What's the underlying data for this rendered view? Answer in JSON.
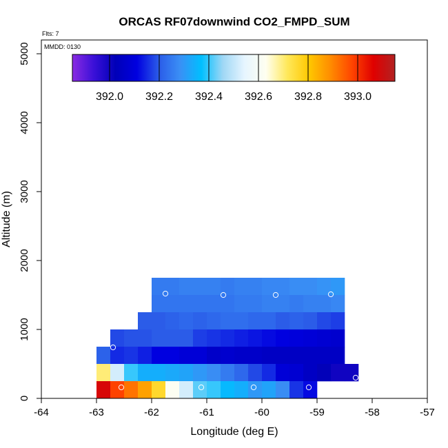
{
  "chart_data": {
    "type": "heatmap",
    "title": "ORCAS RF07downwind CO2_FMPD_SUM",
    "xlabel": "Longitude (deg E)",
    "ylabel": "Altitude (m)",
    "flights_label": "Flts: 7",
    "date_label": "MMDD: 0130",
    "xlim": [
      -64,
      -57
    ],
    "ylim": [
      0,
      5200
    ],
    "x_ticks": [
      -64,
      -63,
      -62,
      -61,
      -60,
      -59,
      -58,
      -57
    ],
    "x_tick_labels": [
      "-64",
      "-63",
      "-62",
      "-61",
      "-60",
      "-59",
      "-58",
      "-57"
    ],
    "y_ticks": [
      0,
      1000,
      2000,
      3000,
      4000,
      5000
    ],
    "y_tick_labels": [
      "0",
      "1000",
      "2000",
      "3000",
      "4000",
      "5000"
    ],
    "colorbar": {
      "min": 391.85,
      "max": 393.15,
      "ticks": [
        392.0,
        392.2,
        392.4,
        392.6,
        392.8,
        393.0
      ],
      "tick_labels": [
        "392.0",
        "392.2",
        "392.4",
        "392.6",
        "392.8",
        "393.0"
      ],
      "colors": [
        "#8a2be2",
        "#3a10d8",
        "#0000b8",
        "#0000e0",
        "#2a5ae8",
        "#3a8ff5",
        "#00bfff",
        "#9fd7f5",
        "#e6f5ff",
        "#fffff0",
        "#ffe85a",
        "#ffc800",
        "#ff8c00",
        "#ff4500",
        "#e00000",
        "#b22222"
      ]
    },
    "x_bin_width": 0.25,
    "y_bin_height": 250,
    "cells": [
      {
        "x0": -62.0,
        "x1": -58.5,
        "y": 1625,
        "values": [
          392.25,
          392.25,
          392.26,
          392.26,
          392.26,
          392.25,
          392.26,
          392.26,
          392.27,
          392.27,
          392.28,
          392.28,
          392.29,
          392.3
        ]
      },
      {
        "x0": -62.0,
        "x1": -58.5,
        "y": 1375,
        "values": [
          392.24,
          392.24,
          392.24,
          392.24,
          392.24,
          392.24,
          392.25,
          392.25,
          392.26,
          392.26,
          392.25,
          392.26,
          392.26,
          392.27
        ]
      },
      {
        "x0": -62.25,
        "x1": -58.5,
        "y": 1125,
        "values": [
          392.2,
          392.2,
          392.21,
          392.22,
          392.21,
          392.22,
          392.23,
          392.23,
          392.22,
          392.22,
          392.2,
          392.21,
          392.2,
          392.18,
          392.17
        ]
      },
      {
        "x0": -62.75,
        "x1": -58.5,
        "y": 875,
        "values": [
          392.18,
          392.19,
          392.19,
          392.2,
          392.2,
          392.2,
          392.17,
          392.16,
          392.15,
          392.14,
          392.13,
          392.12,
          392.11,
          392.1,
          392.09,
          392.08,
          392.07
        ]
      },
      {
        "x0": -63.0,
        "x1": -58.5,
        "y": 625,
        "values": [
          392.21,
          392.15,
          392.16,
          392.14,
          392.11,
          392.11,
          392.09,
          392.09,
          392.06,
          392.07,
          392.06,
          392.06,
          392.05,
          392.05,
          392.05,
          392.05,
          392.05,
          392.05
        ]
      },
      {
        "x0": -63.0,
        "x1": -58.25,
        "y": 375,
        "values": [
          392.7,
          392.52,
          392.4,
          392.34,
          392.34,
          392.33,
          392.32,
          392.3,
          392.28,
          392.25,
          392.22,
          392.18,
          392.15,
          392.09,
          392.08,
          392.05,
          392.02,
          392.0,
          392.0
        ]
      },
      {
        "x0": -63.0,
        "x1": -59.0,
        "y": 125,
        "values": [
          393.08,
          392.98,
          392.92,
          392.86,
          392.76,
          392.62,
          392.52,
          392.42,
          392.4,
          392.36,
          392.34,
          392.3,
          392.32,
          392.28,
          392.16,
          392.12
        ]
      }
    ],
    "markers": [
      {
        "x": -62.55,
        "y": 160
      },
      {
        "x": -61.1,
        "y": 160
      },
      {
        "x": -60.15,
        "y": 160
      },
      {
        "x": -59.15,
        "y": 160
      },
      {
        "x": -62.7,
        "y": 740
      },
      {
        "x": -61.75,
        "y": 1520
      },
      {
        "x": -60.7,
        "y": 1500
      },
      {
        "x": -59.75,
        "y": 1500
      },
      {
        "x": -58.75,
        "y": 1510
      },
      {
        "x": -58.3,
        "y": 300
      }
    ]
  }
}
